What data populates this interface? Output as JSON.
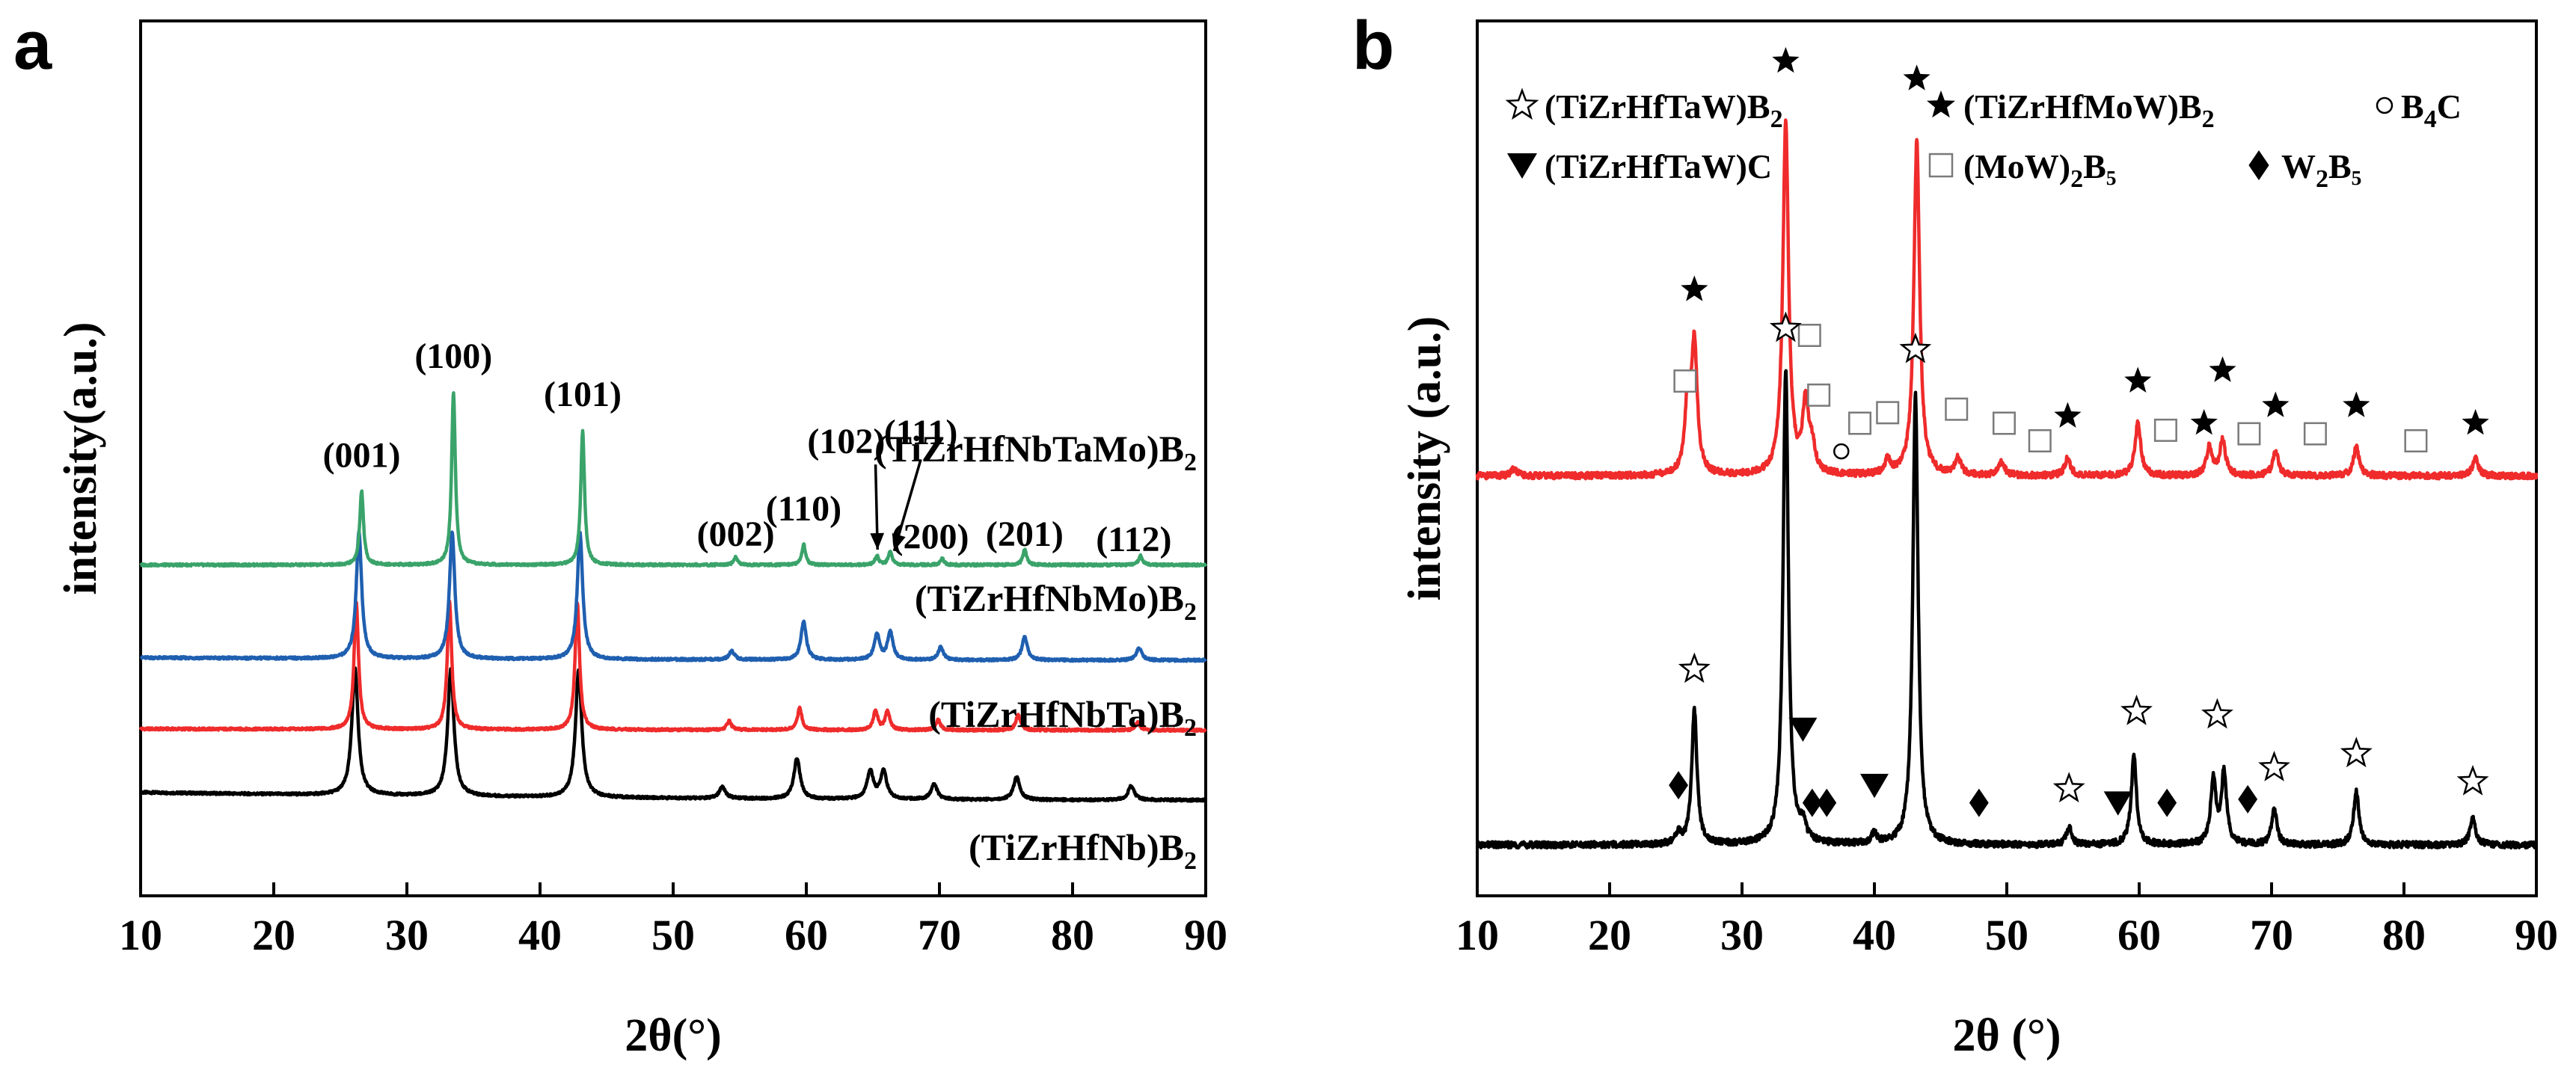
{
  "colors": {
    "green": "#3aa36a",
    "blue": "#1f5fb0",
    "red": "#ef2b2b",
    "black": "#000000"
  },
  "panels": [
    {
      "letter": "a",
      "xlabel": "2θ(°)",
      "ylabel": "intensity(a.u.)",
      "xlim": [
        10,
        90
      ],
      "xticks": [
        "10",
        "20",
        "30",
        "40",
        "50",
        "60",
        "70",
        "80",
        "90"
      ],
      "series": [
        {
          "id": "a-nb",
          "label": "(TiZrHfNb)B",
          "sub": "2",
          "color": "black",
          "offset": 0.0,
          "noise_start": 0.06,
          "noise_end": 0.0,
          "peak_width": 0.28,
          "peaks": [
            [
              26.1,
              1.0
            ],
            [
              33.3,
              1.0
            ],
            [
              42.9,
              1.0
            ],
            [
              53.7,
              0.09
            ],
            [
              59.3,
              0.32
            ],
            [
              64.8,
              0.22
            ],
            [
              65.8,
              0.22
            ],
            [
              69.6,
              0.12
            ],
            [
              75.8,
              0.18
            ],
            [
              84.4,
              0.11
            ]
          ]
        },
        {
          "id": "a-nbta",
          "label": "(TiZrHfNbTa)B",
          "sub": "2",
          "color": "red",
          "offset": 0.55,
          "noise_start": 0.01,
          "noise_end": 0.0,
          "peak_width": 0.2,
          "peaks": [
            [
              26.2,
              1.0
            ],
            [
              33.2,
              1.0
            ],
            [
              42.8,
              1.0
            ],
            [
              54.2,
              0.07
            ],
            [
              59.5,
              0.17
            ],
            [
              65.2,
              0.15
            ],
            [
              66.1,
              0.15
            ],
            [
              69.9,
              0.08
            ],
            [
              75.9,
              0.12
            ],
            [
              84.9,
              0.06
            ]
          ]
        },
        {
          "id": "a-nbmo",
          "label": "(TiZrHfNbMo)B",
          "sub": "2",
          "color": "blue",
          "offset": 1.1,
          "noise_start": 0.02,
          "noise_end": 0.0,
          "peak_width": 0.24,
          "peaks": [
            [
              26.4,
              1.0
            ],
            [
              33.4,
              1.0
            ],
            [
              43.0,
              1.0
            ],
            [
              54.4,
              0.07
            ],
            [
              59.8,
              0.3
            ],
            [
              65.3,
              0.2
            ],
            [
              66.3,
              0.22
            ],
            [
              70.1,
              0.1
            ],
            [
              76.4,
              0.18
            ],
            [
              85.0,
              0.1
            ]
          ]
        },
        {
          "id": "a-nbtamo",
          "label": "(TiZrHfNbTaMo)B",
          "sub": "2",
          "color": "green",
          "offset": 1.85,
          "noise_start": 0.0,
          "noise_end": 0.0,
          "peak_width": 0.17,
          "peaks": [
            [
              26.6,
              0.58
            ],
            [
              33.5,
              1.35
            ],
            [
              43.2,
              1.05
            ],
            [
              54.7,
              0.06
            ],
            [
              59.8,
              0.16
            ],
            [
              65.3,
              0.07
            ],
            [
              66.3,
              0.1
            ],
            [
              70.2,
              0.05
            ],
            [
              76.4,
              0.12
            ],
            [
              85.1,
              0.07
            ]
          ]
        }
      ],
      "peak_labels": [
        {
          "text": "(001)",
          "x": 26.6,
          "y": 2.62
        },
        {
          "text": "(100)",
          "x": 33.5,
          "y": 3.4
        },
        {
          "text": "(101)",
          "x": 43.2,
          "y": 3.1
        },
        {
          "text": "(002)",
          "x": 54.7,
          "y": 2.0
        },
        {
          "text": "(110)",
          "x": 59.8,
          "y": 2.2
        },
        {
          "text": "(102)",
          "x": 63.0,
          "y": 2.73
        },
        {
          "text": "(111)",
          "x": 68.6,
          "y": 2.8
        },
        {
          "text": "(200)",
          "x": 69.3,
          "y": 1.98
        },
        {
          "text": "(201)",
          "x": 76.4,
          "y": 2.0
        },
        {
          "text": "(112)",
          "x": 84.6,
          "y": 1.96
        }
      ],
      "peak_arrows": [
        {
          "from_x": 65.2,
          "from_y": 2.64,
          "to_x": 65.35,
          "to_y": 1.97
        },
        {
          "from_x": 68.6,
          "from_y": 2.68,
          "to_x": 66.6,
          "to_y": 1.96
        }
      ]
    },
    {
      "letter": "b",
      "xlabel": "2θ (°)",
      "ylabel": "intensity (a.u.)",
      "xlim": [
        10,
        90
      ],
      "xticks": [
        "10",
        "20",
        "30",
        "40",
        "50",
        "60",
        "70",
        "80",
        "90"
      ],
      "series": [
        {
          "id": "b-ta",
          "color": "black",
          "offset": 0.0,
          "noise_start": 0.0,
          "noise_end": 0.0,
          "peak_width": 0.24,
          "peaks": [
            [
              25.2,
              0.03
            ],
            [
              26.4,
              0.38
            ],
            [
              33.3,
              1.35
            ],
            [
              34.6,
              0.05
            ],
            [
              40.0,
              0.03
            ],
            [
              43.1,
              1.28
            ],
            [
              54.7,
              0.05
            ],
            [
              59.6,
              0.25
            ],
            [
              65.6,
              0.18
            ],
            [
              66.4,
              0.2
            ],
            [
              70.2,
              0.1
            ],
            [
              76.4,
              0.15
            ],
            [
              85.2,
              0.08
            ]
          ]
        },
        {
          "id": "b-mo",
          "color": "red",
          "offset": 1.05,
          "noise_start": 0.0,
          "noise_end": 0.0,
          "peak_width": 0.26,
          "peaks": [
            [
              12.8,
              0.02
            ],
            [
              25.9,
              0.2
            ],
            [
              26.4,
              0.36
            ],
            [
              33.3,
              1.0
            ],
            [
              34.8,
              0.2
            ],
            [
              35.3,
              0.07
            ],
            [
              41.0,
              0.04
            ],
            [
              43.2,
              0.95
            ],
            [
              46.3,
              0.05
            ],
            [
              49.6,
              0.04
            ],
            [
              54.6,
              0.05
            ],
            [
              59.9,
              0.15
            ],
            [
              65.3,
              0.08
            ],
            [
              66.3,
              0.1
            ],
            [
              70.3,
              0.07
            ],
            [
              76.4,
              0.08
            ],
            [
              85.4,
              0.05
            ]
          ]
        }
      ],
      "legend": [
        {
          "marker": "star-open",
          "label": "(TiZrHfTaW)B",
          "sub": "2",
          "tail": ""
        },
        {
          "marker": "star-filled",
          "label": "(TiZrHfMoW)B",
          "sub": "2",
          "tail": ""
        },
        {
          "marker": "circle-open",
          "label": "B",
          "sub": "4",
          "tail": "C"
        },
        {
          "marker": "triangle-down",
          "label": "(TiZrHfTaW)C",
          "sub": "",
          "tail": ""
        },
        {
          "marker": "square-open",
          "label": "(MoW)",
          "sub": "2",
          "tail": "B₅"
        },
        {
          "marker": "diamond-filled",
          "label": "W",
          "sub": "2",
          "tail": "B₅"
        }
      ],
      "markers": [
        {
          "type": "star-filled",
          "x": 26.4,
          "y": 1.58
        },
        {
          "type": "star-filled",
          "x": 33.3,
          "y": 2.23
        },
        {
          "type": "star-filled",
          "x": 43.2,
          "y": 2.18
        },
        {
          "type": "star-filled",
          "x": 54.6,
          "y": 1.22
        },
        {
          "type": "star-filled",
          "x": 59.9,
          "y": 1.32
        },
        {
          "type": "star-filled",
          "x": 64.9,
          "y": 1.2
        },
        {
          "type": "star-filled",
          "x": 66.3,
          "y": 1.35
        },
        {
          "type": "star-filled",
          "x": 70.3,
          "y": 1.25
        },
        {
          "type": "star-filled",
          "x": 76.4,
          "y": 1.25
        },
        {
          "type": "star-filled",
          "x": 85.4,
          "y": 1.2
        },
        {
          "type": "square-open",
          "x": 25.7,
          "y": 1.32
        },
        {
          "type": "square-open",
          "x": 35.1,
          "y": 1.45
        },
        {
          "type": "square-open",
          "x": 35.8,
          "y": 1.28
        },
        {
          "type": "square-open",
          "x": 38.9,
          "y": 1.2
        },
        {
          "type": "square-open",
          "x": 41.0,
          "y": 1.23
        },
        {
          "type": "square-open",
          "x": 46.2,
          "y": 1.24
        },
        {
          "type": "square-open",
          "x": 49.8,
          "y": 1.2
        },
        {
          "type": "square-open",
          "x": 52.5,
          "y": 1.15
        },
        {
          "type": "square-open",
          "x": 62.0,
          "y": 1.18
        },
        {
          "type": "square-open",
          "x": 68.3,
          "y": 1.17
        },
        {
          "type": "square-open",
          "x": 73.3,
          "y": 1.17
        },
        {
          "type": "square-open",
          "x": 80.9,
          "y": 1.15
        },
        {
          "type": "circle-open",
          "x": 37.5,
          "y": 1.12
        },
        {
          "type": "star-open",
          "x": 26.4,
          "y": 0.5
        },
        {
          "type": "star-open",
          "x": 33.3,
          "y": 1.47
        },
        {
          "type": "star-open",
          "x": 43.1,
          "y": 1.41
        },
        {
          "type": "star-open",
          "x": 54.7,
          "y": 0.16
        },
        {
          "type": "star-open",
          "x": 59.8,
          "y": 0.38
        },
        {
          "type": "star-open",
          "x": 65.9,
          "y": 0.37
        },
        {
          "type": "star-open",
          "x": 70.2,
          "y": 0.22
        },
        {
          "type": "star-open",
          "x": 76.4,
          "y": 0.26
        },
        {
          "type": "star-open",
          "x": 85.2,
          "y": 0.18
        },
        {
          "type": "triangle-down",
          "x": 34.6,
          "y": 0.33
        },
        {
          "type": "triangle-down",
          "x": 40.0,
          "y": 0.17
        },
        {
          "type": "triangle-down",
          "x": 58.4,
          "y": 0.12
        },
        {
          "type": "diamond-filled",
          "x": 25.2,
          "y": 0.17
        },
        {
          "type": "diamond-filled",
          "x": 35.3,
          "y": 0.12
        },
        {
          "type": "diamond-filled",
          "x": 36.4,
          "y": 0.12
        },
        {
          "type": "diamond-filled",
          "x": 47.9,
          "y": 0.12
        },
        {
          "type": "diamond-filled",
          "x": 62.1,
          "y": 0.12
        },
        {
          "type": "diamond-filled",
          "x": 68.2,
          "y": 0.13
        }
      ]
    }
  ]
}
